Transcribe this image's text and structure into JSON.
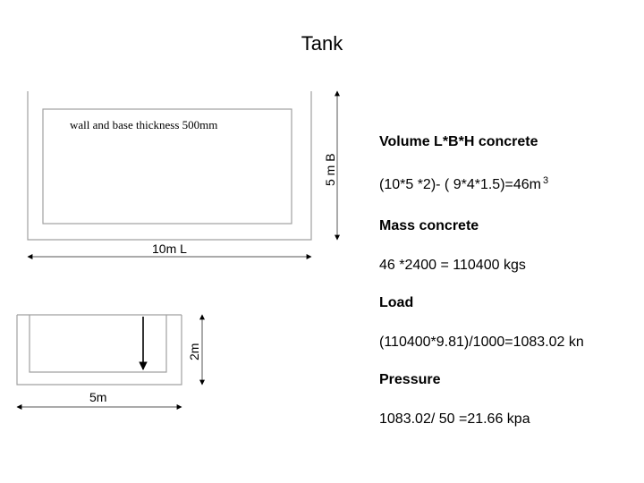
{
  "title": "Tank",
  "plan_view": {
    "note": "wall and base thickness 500mm",
    "length_label": "10m L",
    "breadth_label": "5 m B"
  },
  "section_view": {
    "width_label": "5m",
    "height_label": "2m"
  },
  "calculations": {
    "volume_heading": "Volume L*B*H concrete",
    "volume_formula": "(10*5 *2)- ( 9*4*1.5)=46m",
    "volume_unit_exp": "3",
    "mass_heading": "Mass concrete",
    "mass_formula": "46 *2400 = 110400 kgs",
    "load_heading": "Load",
    "load_formula": "(110400*9.81)/1000=1083.02 kn",
    "pressure_heading": "Pressure",
    "pressure_formula": "1083.02/ 50 =21.66 kpa"
  }
}
